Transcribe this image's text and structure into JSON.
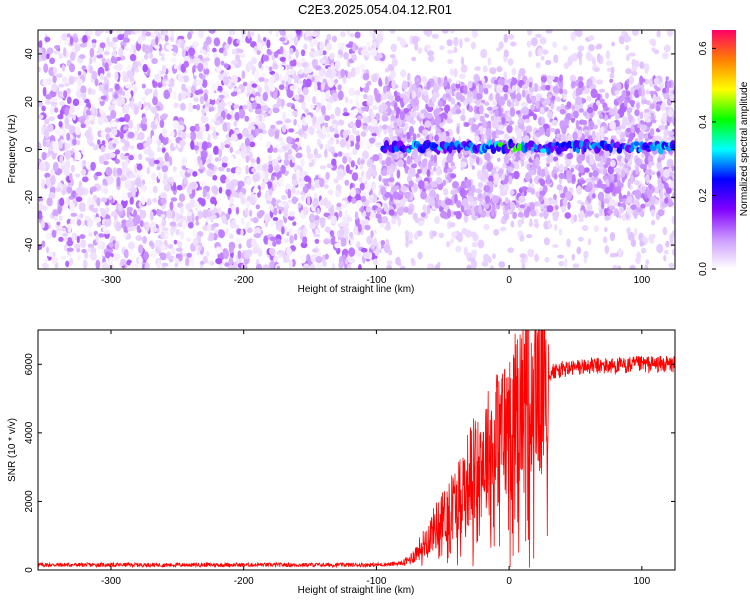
{
  "figure": {
    "title": "C2E3.2025.054.04.12.R01"
  },
  "chart_data": [
    {
      "type": "heatmap",
      "title": "C2E3.2025.054.04.12.R01",
      "xlabel": "Height of straight line (km)",
      "ylabel": "Frequency (Hz)",
      "xlim": [
        -355,
        125
      ],
      "ylim": [
        -50,
        50
      ],
      "x_ticks": [
        -300,
        -200,
        -100,
        0,
        100
      ],
      "x_tick_labels": [
        "-300",
        "-200",
        "-100",
        "0",
        "100"
      ],
      "y_ticks": [
        -40,
        -20,
        0,
        20,
        40
      ],
      "y_tick_labels": [
        "-40",
        "-20",
        "0",
        "20",
        "40"
      ],
      "colorbar": {
        "label": "Normalized spectral amplitude",
        "range": [
          0,
          0.65
        ],
        "ticks": [
          0,
          0.2,
          0.4,
          0.6
        ],
        "tick_labels": [
          "0.0",
          "0.2",
          "0.4",
          "0.6"
        ],
        "colors": [
          "#ffffff",
          "#cc99ff",
          "#8000ff",
          "#0000ff",
          "#00ffff",
          "#00ff00",
          "#ffff00",
          "#ff8000",
          "#ff0066"
        ]
      },
      "grid": false,
      "features": [
        {
          "x_range": [
            -355,
            -95
          ],
          "f_range": [
            -50,
            50
          ],
          "amplitude": 0.12,
          "note": "broadband noise"
        },
        {
          "x_range": [
            -95,
            125
          ],
          "f_range": [
            -28,
            30
          ],
          "amplitude": 0.1,
          "note": "narrowing noise band"
        },
        {
          "x_range": [
            -95,
            125
          ],
          "f_center": 1,
          "amplitude": 0.3,
          "note": "carrier line near 0 Hz"
        }
      ]
    },
    {
      "type": "line",
      "xlabel": "Height of straight line (km)",
      "ylabel": "SNR (10 * v/v)",
      "xlim": [
        -355,
        125
      ],
      "ylim": [
        0,
        7000
      ],
      "x_ticks": [
        -300,
        -200,
        -100,
        0,
        100
      ],
      "x_tick_labels": [
        "-300",
        "-200",
        "-100",
        "0",
        "100"
      ],
      "y_ticks": [
        0,
        2000,
        4000,
        6000
      ],
      "y_tick_labels": [
        "0",
        "2000",
        "4000",
        "6000"
      ],
      "grid": false,
      "color": "#ff0000",
      "x": [
        -355,
        -300,
        -250,
        -200,
        -150,
        -100,
        -90,
        -80,
        -75,
        -70,
        -65,
        -60,
        -55,
        -50,
        -45,
        -40,
        -35,
        -30,
        -25,
        -20,
        -15,
        -10,
        -5,
        0,
        5,
        10,
        15,
        20,
        25,
        30,
        40,
        50,
        60,
        80,
        100,
        125
      ],
      "y": [
        150,
        150,
        150,
        150,
        150,
        150,
        170,
        200,
        300,
        500,
        750,
        1000,
        1300,
        1500,
        1800,
        2000,
        2400,
        2700,
        3000,
        3300,
        3500,
        3800,
        4000,
        4200,
        4600,
        4900,
        5200,
        5450,
        5600,
        5750,
        5850,
        5900,
        5950,
        5950,
        6000,
        6000
      ]
    }
  ]
}
